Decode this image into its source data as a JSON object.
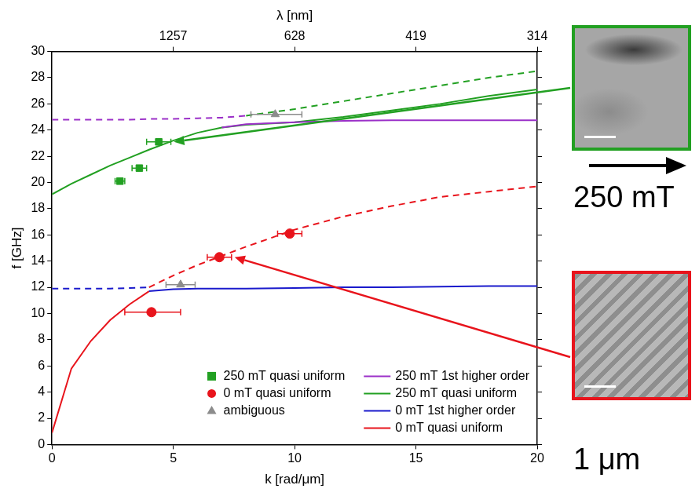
{
  "chart_data": {
    "type": "scatter",
    "x_label": "k [rad/μm]",
    "y_label": "f [GHz]",
    "x2_label": "λ [nm]",
    "xlim": [
      0,
      20
    ],
    "xticks": [
      0,
      5,
      10,
      15,
      20
    ],
    "x2ticks": [
      {
        "value": 5,
        "label": "1257"
      },
      {
        "value": 10,
        "label": "628"
      },
      {
        "value": 15,
        "label": "419"
      },
      {
        "value": 20,
        "label": "314"
      }
    ],
    "ylim": [
      0,
      30
    ],
    "yticks": [
      0,
      2,
      4,
      6,
      8,
      10,
      12,
      14,
      16,
      18,
      20,
      22,
      24,
      26,
      28,
      30
    ],
    "grid": false,
    "legend": "lower right",
    "series": [
      {
        "name": "250 mT quasi uniform",
        "type": "scatter",
        "marker": "square",
        "color": "#22a022",
        "x": [
          2.8,
          3.6,
          4.4
        ],
        "values": [
          20.1,
          21.1,
          23.1
        ],
        "xerr": [
          [
            0.2,
            0.2
          ],
          [
            0.3,
            0.3
          ],
          [
            0.5,
            0.5
          ]
        ]
      },
      {
        "name": "0 mT quasi uniform",
        "type": "scatter",
        "marker": "circle",
        "color": "#e8141c",
        "x": [
          4.1,
          6.9,
          9.8
        ],
        "values": [
          10.1,
          14.3,
          16.1
        ],
        "xerr": [
          [
            1.1,
            1.2
          ],
          [
            0.5,
            0.5
          ],
          [
            0.5,
            0.5
          ]
        ]
      },
      {
        "name": "ambiguous",
        "type": "scatter",
        "marker": "triangle",
        "color": "#8c8c8c",
        "x": [
          5.3,
          9.2
        ],
        "values": [
          12.2,
          25.2
        ],
        "xerr": [
          [
            0.6,
            0.6
          ],
          [
            1.0,
            1.1
          ]
        ]
      },
      {
        "name": "250 mT 1st higher order",
        "type": "line",
        "line_style": "solid",
        "color": "#9b30c8",
        "x": [
          0,
          0.8,
          1.6,
          2.4,
          3.2,
          4,
          5,
          6,
          7,
          8,
          10,
          12,
          14,
          16,
          18,
          20
        ],
        "values": [
          null,
          null,
          null,
          null,
          null,
          null,
          null,
          null,
          24.2,
          24.45,
          24.6,
          24.7,
          24.75,
          24.75,
          24.75,
          24.75
        ],
        "dashed_values": [
          24.8,
          24.8,
          24.8,
          24.8,
          24.8,
          24.85,
          24.85,
          24.9,
          24.95,
          25.1,
          null,
          null,
          null,
          null,
          null,
          null
        ]
      },
      {
        "name": "250 mT quasi uniform",
        "type": "line",
        "line_style": "solid",
        "color": "#22a022",
        "x": [
          0,
          0.8,
          1.6,
          2.4,
          3.2,
          4,
          5,
          6,
          7,
          8,
          10,
          12,
          14,
          16,
          18,
          20
        ],
        "values": [
          19.1,
          19.9,
          20.6,
          21.3,
          21.9,
          22.5,
          23.2,
          23.8,
          24.2,
          24.4,
          24.6,
          25.0,
          25.5,
          26.0,
          26.6,
          27.1
        ],
        "dashed_values": [
          null,
          null,
          null,
          null,
          null,
          null,
          null,
          null,
          null,
          25.1,
          25.6,
          26.2,
          26.8,
          27.4,
          28.0,
          28.5
        ]
      },
      {
        "name": "0 mT 1st higher order",
        "type": "line",
        "line_style": "solid",
        "color": "#1a1acc",
        "x": [
          0,
          0.8,
          1.6,
          2.4,
          3.2,
          4,
          5,
          6,
          7,
          8,
          10,
          12,
          14,
          16,
          18,
          20
        ],
        "values": [
          null,
          null,
          null,
          null,
          null,
          11.7,
          11.85,
          11.9,
          11.9,
          11.9,
          11.95,
          12.0,
          12.0,
          12.05,
          12.1,
          12.1
        ],
        "dashed_values": [
          11.9,
          11.9,
          11.9,
          11.9,
          11.95,
          12.0,
          null,
          null,
          null,
          null,
          null,
          null,
          null,
          null,
          null,
          null
        ]
      },
      {
        "name": "0 mT quasi uniform",
        "type": "line",
        "line_style": "solid",
        "color": "#e8141c",
        "x": [
          0,
          0.8,
          1.6,
          2.4,
          3.2,
          4,
          5,
          6,
          7,
          8,
          10,
          12,
          14,
          16,
          18,
          20
        ],
        "values": [
          0.9,
          5.8,
          7.9,
          9.5,
          10.7,
          11.7,
          null,
          null,
          null,
          null,
          null,
          null,
          null,
          null,
          null,
          null
        ],
        "dashed_values": [
          null,
          null,
          null,
          null,
          null,
          12.0,
          12.9,
          13.7,
          14.4,
          15.1,
          16.4,
          17.4,
          18.2,
          18.9,
          19.3,
          19.7
        ]
      }
    ],
    "insets": [
      {
        "color": "#22a022",
        "label": "250 mT"
      },
      {
        "color": "#e8141c",
        "label": "1 μm"
      }
    ]
  }
}
